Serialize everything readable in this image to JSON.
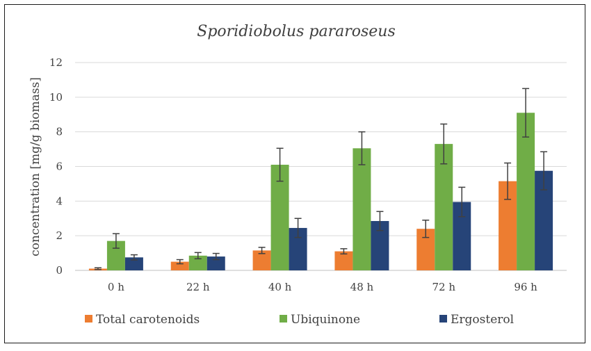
{
  "chart_data": {
    "type": "bar",
    "title": "Sporidiobolus pararoseus",
    "xlabel": "",
    "ylabel": "concentration [mg/g biomass]",
    "categories": [
      "0 h",
      "22 h",
      "40 h",
      "48 h",
      "72 h",
      "96 h"
    ],
    "ylim": [
      0,
      12
    ],
    "yticks": [
      0,
      2,
      4,
      6,
      8,
      10,
      12
    ],
    "grid": true,
    "legend": "bottom",
    "series": [
      {
        "name": "Total carotenoids",
        "color": "#ED7D31",
        "values": [
          0.1,
          0.5,
          1.15,
          1.1,
          2.4,
          5.15
        ],
        "errors": [
          0.05,
          0.12,
          0.18,
          0.15,
          0.5,
          1.05
        ]
      },
      {
        "name": "Ubiquinone",
        "color": "#70AD47",
        "values": [
          1.7,
          0.85,
          6.1,
          7.05,
          7.3,
          9.1
        ],
        "errors": [
          0.42,
          0.18,
          0.95,
          0.95,
          1.15,
          1.4
        ]
      },
      {
        "name": "Ergosterol",
        "color": "#264478",
        "values": [
          0.75,
          0.8,
          2.45,
          2.85,
          3.95,
          5.75
        ],
        "errors": [
          0.15,
          0.18,
          0.55,
          0.55,
          0.85,
          1.1
        ]
      }
    ]
  }
}
